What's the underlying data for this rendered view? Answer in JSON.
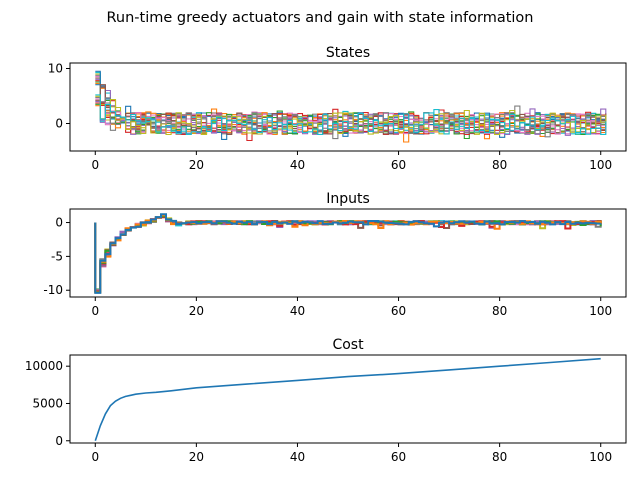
{
  "figure": {
    "suptitle": "Run-time greedy actuators and gain with state information"
  },
  "chart_data": [
    {
      "type": "line",
      "drawstyle": "steps",
      "title": "States",
      "xlabel": "",
      "ylabel": "",
      "xlim": [
        -5,
        105
      ],
      "ylim": [
        -5,
        11
      ],
      "xticks": [
        0,
        20,
        40,
        60,
        80,
        100
      ],
      "yticks": [
        0,
        10
      ],
      "n_series": 20,
      "x_end": 101,
      "initial_range": [
        3,
        9.5
      ],
      "steady_range": [
        -4.5,
        3.5
      ],
      "grid": false,
      "legend": "none"
    },
    {
      "type": "line",
      "drawstyle": "steps",
      "title": "Inputs",
      "xlabel": "",
      "ylabel": "",
      "xlim": [
        -5,
        105
      ],
      "ylim": [
        -11,
        2
      ],
      "xticks": [
        0,
        20,
        40,
        60,
        80,
        100
      ],
      "yticks": [
        -10,
        -5,
        0
      ],
      "n_series": 10,
      "x_end": 100,
      "envelope": {
        "x": [
          0,
          1,
          2,
          3,
          4,
          5,
          6,
          7,
          8,
          9,
          10,
          11,
          12,
          13,
          14,
          15,
          16
        ],
        "y": [
          -10,
          -6,
          -4.5,
          -3.2,
          -2.4,
          -1.6,
          -1.1,
          -0.7,
          -0.4,
          -0.2,
          0.1,
          0.3,
          0.6,
          1.0,
          0.4,
          0,
          -0.2
        ]
      },
      "steady_range": [
        -1,
        0.4
      ],
      "grid": false,
      "legend": "none"
    },
    {
      "type": "line",
      "title": "Cost",
      "xlabel": "",
      "ylabel": "",
      "xlim": [
        -5,
        105
      ],
      "ylim": [
        -300,
        11500
      ],
      "xticks": [
        0,
        20,
        40,
        60,
        80,
        100
      ],
      "yticks": [
        0,
        5000,
        10000
      ],
      "x": [
        0,
        1,
        2,
        3,
        4,
        5,
        6,
        7,
        8,
        10,
        12,
        15,
        20,
        30,
        40,
        50,
        60,
        70,
        80,
        90,
        100
      ],
      "y": [
        0,
        2000,
        3600,
        4700,
        5300,
        5700,
        5950,
        6100,
        6250,
        6400,
        6500,
        6700,
        7100,
        7600,
        8100,
        8600,
        9000,
        9500,
        10000,
        10500,
        11000
      ],
      "series_color": "#1f77b4",
      "grid": false,
      "legend": "none"
    }
  ],
  "colors": [
    "#1f77b4",
    "#ff7f0e",
    "#2ca02c",
    "#d62728",
    "#9467bd",
    "#8c564b",
    "#e377c2",
    "#7f7f7f",
    "#bcbd22",
    "#17becf"
  ]
}
